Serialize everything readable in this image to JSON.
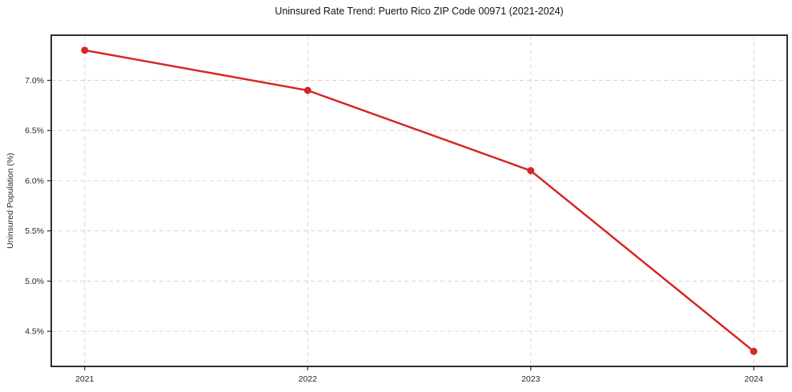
{
  "chart_data": {
    "type": "line",
    "title": "Uninsured Rate Trend: Puerto Rico ZIP Code 00971 (2021-2024)",
    "xlabel": "",
    "ylabel": "Uninsured Population (%)",
    "x": [
      2021,
      2022,
      2023,
      2024
    ],
    "values": [
      7.3,
      6.9,
      6.1,
      4.3
    ],
    "xticks": [
      2021,
      2022,
      2023,
      2024
    ],
    "xtick_labels": [
      "2021",
      "2022",
      "2023",
      "2024"
    ],
    "yticks": [
      4.5,
      5.0,
      5.5,
      6.0,
      6.5,
      7.0
    ],
    "ytick_labels": [
      "4.5%",
      "5.0%",
      "5.5%",
      "6.0%",
      "6.5%",
      "7.0%"
    ],
    "xlim": [
      2020.85,
      2024.15
    ],
    "ylim": [
      4.15,
      7.45
    ],
    "grid": true,
    "grid_style": "dashed",
    "legend": "none",
    "colors": {
      "line": "#d62728",
      "marker": "#d62728",
      "grid": "#d6d6d6",
      "spine": "#1a1a1a",
      "tick": "#262626",
      "background": "#ffffff"
    }
  }
}
